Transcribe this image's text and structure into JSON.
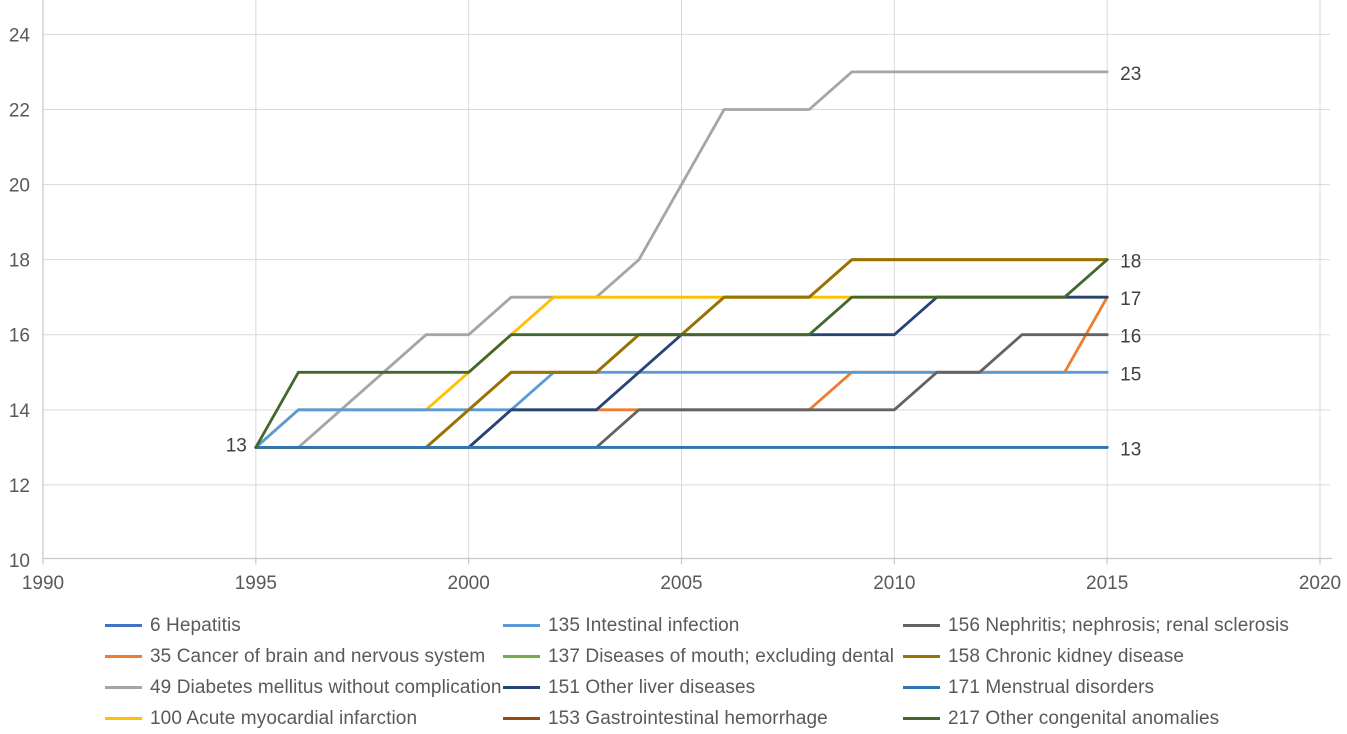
{
  "chart_data": {
    "type": "line",
    "title": "",
    "xlabel": "",
    "ylabel": "",
    "grid": true,
    "legend_position": "bottom",
    "x_axis": {
      "min": 1990,
      "max": 2020,
      "tick_step": 5,
      "tick_labels": [
        "1990",
        "1995",
        "2000",
        "2005",
        "2010",
        "2015",
        "2020"
      ]
    },
    "y_axis": {
      "min": 10,
      "max": 24,
      "tick_step": 2,
      "tick_labels": [
        "10",
        "12",
        "14",
        "16",
        "18",
        "20",
        "22",
        "24"
      ]
    },
    "x": [
      1995,
      1996,
      1997,
      1998,
      1999,
      2000,
      2001,
      2002,
      2003,
      2004,
      2005,
      2006,
      2007,
      2008,
      2009,
      2010,
      2011,
      2012,
      2013,
      2014,
      2015
    ],
    "series": [
      {
        "id": "6",
        "label": "6 Hepatitis",
        "color": "#4472C4",
        "values": [
          13,
          13,
          13,
          13,
          13,
          13,
          13,
          13,
          13,
          13,
          13,
          13,
          13,
          13,
          13,
          13,
          13,
          13,
          13,
          13,
          13
        ]
      },
      {
        "id": "35",
        "label": "35 Cancer of brain and nervous system",
        "color": "#ED7D31",
        "values": [
          13,
          13,
          13,
          13,
          13,
          13,
          14,
          14,
          14,
          14,
          14,
          14,
          14,
          14,
          15,
          15,
          15,
          15,
          15,
          15,
          17
        ]
      },
      {
        "id": "49",
        "label": "49 Diabetes mellitus without complication",
        "color": "#A5A5A5",
        "values": [
          13,
          13,
          14,
          15,
          16,
          16,
          17,
          17,
          17,
          18,
          20,
          22,
          22,
          22,
          23,
          23,
          23,
          23,
          23,
          23,
          23
        ]
      },
      {
        "id": "100",
        "label": "100 Acute myocardial infarction",
        "color": "#FFC000",
        "values": [
          13,
          14,
          14,
          14,
          14,
          15,
          16,
          17,
          17,
          17,
          17,
          17,
          17,
          17,
          17,
          17,
          17,
          17,
          17,
          17,
          17
        ]
      },
      {
        "id": "135",
        "label": "135 Intestinal infection",
        "color": "#5B9BD5",
        "values": [
          13,
          14,
          14,
          14,
          14,
          14,
          14,
          15,
          15,
          15,
          15,
          15,
          15,
          15,
          15,
          15,
          15,
          15,
          15,
          15,
          15
        ]
      },
      {
        "id": "137",
        "label": "137 Diseases of mouth; excluding dental",
        "color": "#70AD47",
        "values": [
          13,
          13,
          13,
          13,
          13,
          13,
          13,
          13,
          13,
          13,
          13,
          13,
          13,
          13,
          13,
          13,
          13,
          13,
          13,
          13,
          13
        ]
      },
      {
        "id": "151",
        "label": "151 Other liver diseases",
        "color": "#264478",
        "values": [
          13,
          13,
          13,
          13,
          13,
          13,
          14,
          14,
          14,
          15,
          16,
          16,
          16,
          16,
          16,
          16,
          17,
          17,
          17,
          17,
          17
        ]
      },
      {
        "id": "153",
        "label": "153 Gastrointestinal hemorrhage",
        "color": "#9E480E",
        "values": [
          13,
          13,
          13,
          13,
          13,
          14,
          15,
          15,
          15,
          16,
          16,
          17,
          17,
          17,
          18,
          18,
          18,
          18,
          18,
          18,
          18
        ]
      },
      {
        "id": "156",
        "label": "156 Nephritis; nephrosis; renal sclerosis",
        "color": "#636363",
        "values": [
          13,
          13,
          13,
          13,
          13,
          13,
          13,
          13,
          13,
          14,
          14,
          14,
          14,
          14,
          14,
          14,
          15,
          15,
          16,
          16,
          16
        ]
      },
      {
        "id": "158",
        "label": "158 Chronic kidney disease",
        "color": "#997300",
        "values": [
          13,
          13,
          13,
          13,
          13,
          14,
          15,
          15,
          15,
          16,
          16,
          17,
          17,
          17,
          18,
          18,
          18,
          18,
          18,
          18,
          18
        ]
      },
      {
        "id": "171",
        "label": "171 Menstrual disorders",
        "color": "#2E75B6",
        "values": [
          13,
          13,
          13,
          13,
          13,
          13,
          13,
          13,
          13,
          13,
          13,
          13,
          13,
          13,
          13,
          13,
          13,
          13,
          13,
          13,
          13
        ]
      },
      {
        "id": "217",
        "label": "217 Other congenital anomalies",
        "color": "#43682B",
        "values": [
          13,
          15,
          15,
          15,
          15,
          15,
          16,
          16,
          16,
          16,
          16,
          16,
          16,
          16,
          17,
          17,
          17,
          17,
          17,
          17,
          18
        ]
      }
    ],
    "start_label": {
      "text": "13",
      "year": 1995,
      "value": 13
    },
    "end_labels": [
      {
        "text": "23",
        "value": 23
      },
      {
        "text": "18",
        "value": 18
      },
      {
        "text": "17",
        "value": 17
      },
      {
        "text": "16",
        "value": 16
      },
      {
        "text": "15",
        "value": 15
      },
      {
        "text": "13",
        "value": 13
      }
    ],
    "colors": {
      "gridline": "#D9D9D9",
      "axis_line": "#C8C8C8",
      "tick_label": "#595959",
      "data_label": "#404040"
    },
    "legend_order": [
      "6",
      "35",
      "49",
      "100",
      "135",
      "137",
      "151",
      "153",
      "156",
      "158",
      "171",
      "217"
    ]
  }
}
